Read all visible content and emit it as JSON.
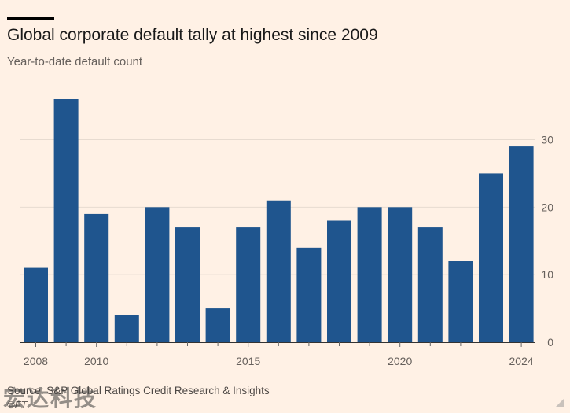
{
  "title": "Global corporate default tally at highest since 2009",
  "subtitle": "Year-to-date default count",
  "source": "Source: S&P Global Ratings Credit Research & Insights",
  "credit": "©FT",
  "watermark": "宏达科技",
  "colors": {
    "bar": "#1f558e",
    "background": "#fff1e5",
    "grid": "#e7dbd0",
    "axis_text": "#66605c"
  },
  "chart_data": {
    "type": "bar",
    "categories": [
      "2008",
      "2009",
      "2010",
      "2011",
      "2012",
      "2013",
      "2014",
      "2015",
      "2016",
      "2017",
      "2018",
      "2019",
      "2020",
      "2021",
      "2022",
      "2023",
      "2024"
    ],
    "values": [
      11,
      36,
      19,
      4,
      20,
      17,
      5,
      17,
      21,
      14,
      18,
      20,
      20,
      17,
      12,
      25,
      29
    ],
    "x_tick_labels": [
      "2008",
      "2010",
      "2015",
      "2020",
      "2024"
    ],
    "y_ticks": [
      0,
      10,
      20,
      30
    ],
    "ylim": [
      0,
      36
    ],
    "grid": true,
    "y_axis_side": "right"
  }
}
